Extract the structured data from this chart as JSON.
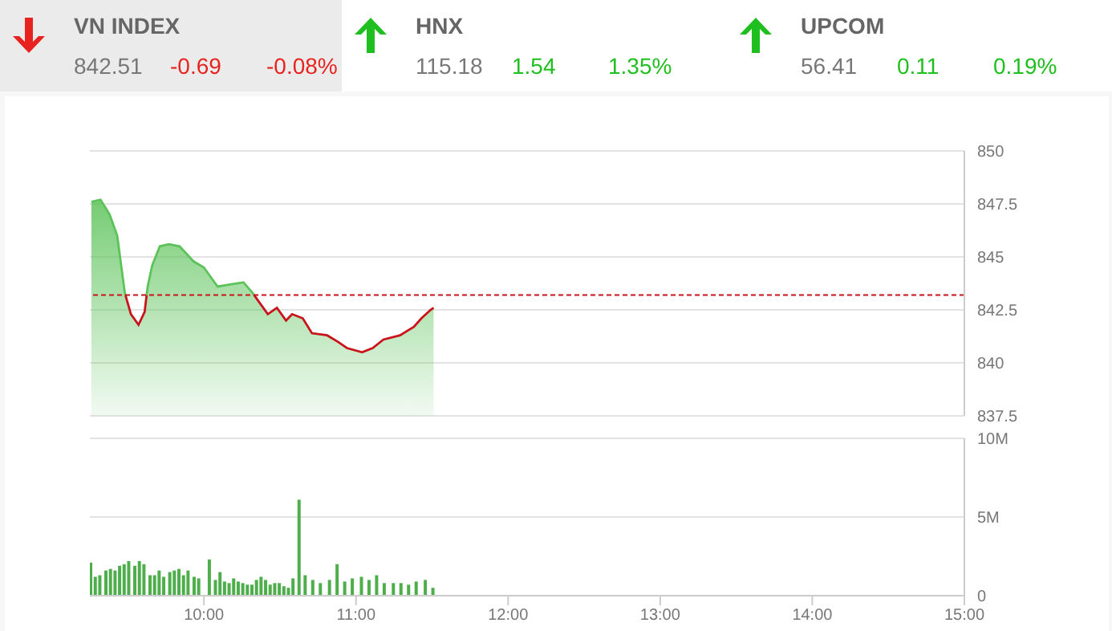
{
  "chart_data": [
    {
      "type": "other",
      "title": "VN INDEX",
      "annotations": [
        "842.51"
      ],
      "values": [
        -0.69,
        -0.08
      ],
      "value_labels": [
        "-0.69",
        "-0.08%"
      ],
      "color": "#e8221f"
    },
    {
      "type": "other",
      "title": "HNX",
      "annotations": [
        "115.18"
      ],
      "values": [
        1.54,
        1.35
      ],
      "value_labels": [
        "1.54",
        "1.35%"
      ],
      "color": "#1fbf1f"
    },
    {
      "type": "other",
      "title": "UPCOM",
      "annotations": [
        "56.41"
      ],
      "values": [
        0.11,
        0.19
      ],
      "value_labels": [
        "0.11",
        "0.19%"
      ],
      "color": "#1fbf1f"
    },
    {
      "type": "area",
      "series": [
        {
          "type": "area",
          "color": "#5cc35a",
          "x": [
            9.26,
            9.32,
            9.38,
            9.43,
            9.48,
            9.52,
            9.57,
            9.61,
            9.63,
            9.66,
            9.71,
            9.77,
            9.84,
            9.93,
            10.0,
            10.09,
            10.17,
            10.26,
            10.32,
            10.37,
            10.42,
            10.48,
            10.54,
            10.58,
            10.65,
            10.71,
            10.81,
            10.88,
            10.94,
            11.04,
            11.11,
            11.18,
            11.29,
            11.38,
            11.43,
            11.49,
            11.51
          ],
          "values": [
            847.6,
            847.7,
            847.0,
            846.0,
            843.3,
            842.3,
            841.8,
            842.4,
            843.6,
            844.6,
            845.5,
            845.6,
            845.5,
            844.8,
            844.5,
            843.6,
            843.7,
            843.8,
            843.3,
            842.8,
            842.3,
            842.6,
            842.0,
            842.3,
            842.1,
            841.4,
            841.3,
            841.0,
            840.7,
            840.5,
            840.7,
            841.1,
            841.3,
            841.7,
            842.1,
            842.5,
            842.6
          ]
        }
      ],
      "xlim": [
        9.25,
        15
      ],
      "ylim": [
        837.5,
        850
      ],
      "yticks": [
        837.5,
        840,
        842.5,
        845,
        847.5,
        850
      ],
      "ref_lines": [
        {
          "axis": "y",
          "value": 843.2,
          "color": "#c8141a",
          "line_style": "dashed"
        }
      ],
      "grid": "y",
      "tick_labels": "y",
      "marker": "none",
      "line_style": "solid"
    },
    {
      "type": "bar",
      "x": [
        9.26,
        9.29,
        9.32,
        9.36,
        9.39,
        9.42,
        9.45,
        9.48,
        9.51,
        9.55,
        9.58,
        9.61,
        9.65,
        9.68,
        9.71,
        9.74,
        9.78,
        9.81,
        9.84,
        9.87,
        9.9,
        9.94,
        9.97,
        10.04,
        10.08,
        10.11,
        10.14,
        10.17,
        10.2,
        10.23,
        10.26,
        10.29,
        10.32,
        10.35,
        10.38,
        10.41,
        10.44,
        10.47,
        10.5,
        10.53,
        10.56,
        10.59,
        10.63,
        10.67,
        10.72,
        10.77,
        10.83,
        10.88,
        10.93,
        10.98,
        11.04,
        11.09,
        11.14,
        11.19,
        11.25,
        11.3,
        11.35,
        11.4,
        11.46,
        11.51
      ],
      "values": [
        2.1,
        1.2,
        1.3,
        1.6,
        1.7,
        1.6,
        1.9,
        2.0,
        2.2,
        1.9,
        2.2,
        2.0,
        1.3,
        1.3,
        1.6,
        1.2,
        1.5,
        1.6,
        1.7,
        1.3,
        1.6,
        1.2,
        1.1,
        2.3,
        1.0,
        1.5,
        0.9,
        0.8,
        1.1,
        0.9,
        0.8,
        0.7,
        0.7,
        1.0,
        1.2,
        1.0,
        0.7,
        0.8,
        0.8,
        0.6,
        0.5,
        1.1,
        6.1,
        1.3,
        1.0,
        0.8,
        1.0,
        2.0,
        0.9,
        1.1,
        1.2,
        1.0,
        1.3,
        0.8,
        0.8,
        0.8,
        0.7,
        0.9,
        1.0,
        0.5
      ],
      "color": "#4fae4c",
      "xlim": [
        9.25,
        15
      ],
      "xticks": [
        {
          "value": 10,
          "label": "10:00"
        },
        {
          "value": 11,
          "label": "11:00"
        },
        {
          "value": 12,
          "label": "12:00"
        },
        {
          "value": 13,
          "label": "13:00"
        },
        {
          "value": 14,
          "label": "14:00"
        },
        {
          "value": 15,
          "label": "15:00"
        }
      ],
      "ylim": [
        0,
        10
      ],
      "yticks": [
        {
          "value": 0,
          "label": "0"
        },
        {
          "value": 5,
          "label": "5M"
        },
        {
          "value": 10,
          "label": "10M"
        }
      ],
      "grid": "y"
    }
  ]
}
